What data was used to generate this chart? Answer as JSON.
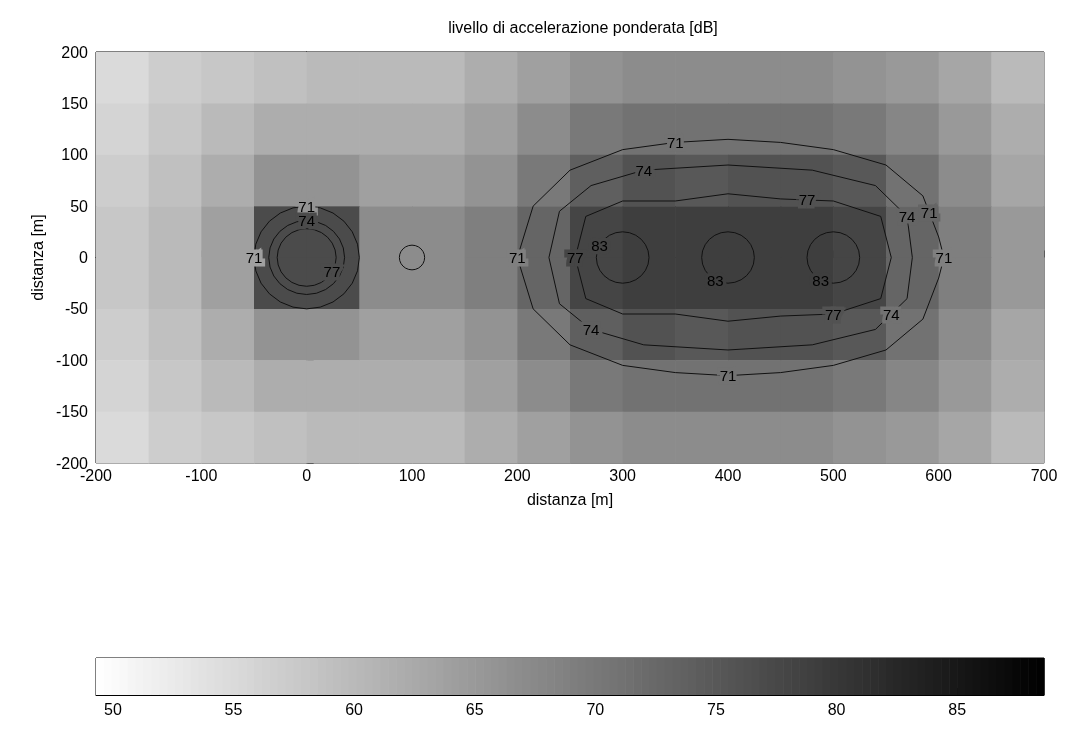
{
  "chart_data": {
    "type": "heatmap",
    "title": "livello di accelerazione ponderata [dB]",
    "xlabel": "distanza [m]",
    "ylabel": "distanza [m]",
    "x": [
      -175,
      -125,
      -75,
      -25,
      25,
      75,
      125,
      175,
      225,
      275,
      325,
      375,
      425,
      475,
      525,
      575,
      625,
      675
    ],
    "y": [
      175,
      125,
      75,
      25,
      -25,
      -75,
      -125,
      -175
    ],
    "xlim": [
      -200,
      700
    ],
    "xticks": [
      -200,
      -100,
      0,
      100,
      200,
      300,
      400,
      500,
      600,
      700
    ],
    "ylim": [
      -200,
      200
    ],
    "yticks": [
      -200,
      -150,
      -100,
      -50,
      0,
      50,
      100,
      150,
      200
    ],
    "clim": [
      49.3,
      88.6
    ],
    "cticks": [
      50,
      55,
      60,
      65,
      70,
      75,
      80,
      85
    ],
    "cells": [
      [
        55,
        57,
        58,
        59,
        60,
        60,
        60,
        62,
        64,
        66,
        67,
        67,
        67,
        67,
        66,
        65,
        63,
        60
      ],
      [
        56,
        58,
        60,
        62,
        62,
        62,
        62,
        64,
        67,
        70,
        71,
        71,
        71,
        71,
        70,
        68,
        65,
        62
      ],
      [
        57,
        59,
        62,
        66,
        66,
        64,
        64,
        66,
        70,
        74,
        76,
        75,
        76,
        76,
        75,
        71,
        67,
        63
      ],
      [
        58,
        60,
        64,
        77,
        77,
        67,
        67,
        69,
        73,
        78,
        79,
        79,
        79,
        79,
        78,
        73,
        69,
        65
      ],
      [
        58,
        60,
        64,
        77,
        77,
        67,
        67,
        69,
        73,
        78,
        79,
        79,
        79,
        79,
        78,
        73,
        69,
        65
      ],
      [
        57,
        59,
        62,
        66,
        66,
        64,
        64,
        66,
        70,
        74,
        76,
        75,
        76,
        76,
        75,
        71,
        67,
        63
      ],
      [
        56,
        58,
        60,
        62,
        62,
        62,
        62,
        64,
        67,
        70,
        71,
        71,
        71,
        71,
        70,
        68,
        65,
        62
      ],
      [
        55,
        57,
        58,
        59,
        60,
        60,
        60,
        62,
        64,
        66,
        67,
        67,
        67,
        67,
        66,
        65,
        63,
        60
      ]
    ],
    "annotations": [
      "71",
      "71",
      "74",
      "77",
      "71",
      "71",
      "71",
      "71",
      "71",
      "74",
      "74",
      "74",
      "74",
      "77",
      "77",
      "77",
      "83",
      "83",
      "83"
    ]
  }
}
